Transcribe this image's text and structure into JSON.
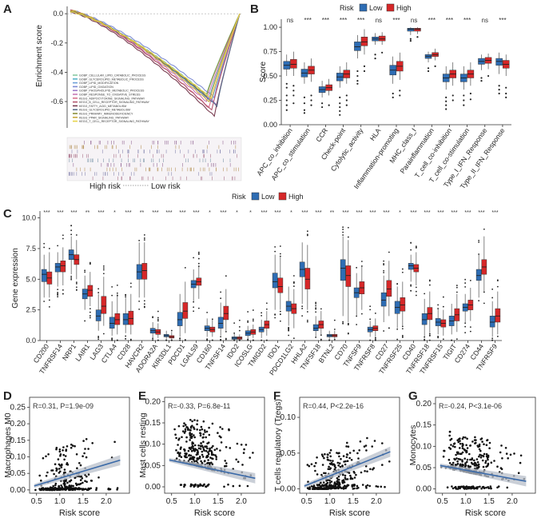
{
  "colors": {
    "low": "#2e6db4",
    "high": "#d62728",
    "axis": "#333333",
    "fit": "#3b6aa8",
    "band": "#b8bfc9",
    "point": "#111111"
  },
  "panel_letters": [
    "A",
    "B",
    "C",
    "D",
    "E",
    "F",
    "G"
  ],
  "chart_data": [
    {
      "id": "A",
      "type": "line",
      "ylabel": "Enrichment score",
      "yticks": [
        0.0,
        -0.2,
        -0.4,
        -0.6
      ],
      "ylim": [
        -0.78,
        0.05
      ],
      "legend": [
        {
          "name": "GOBP_CELLULAR_LIPID_CATABOLIC_PROCESS",
          "color": "#88c9a1"
        },
        {
          "name": "GOBP_GLYCEROLIPID_METABOLIC_PROCESS",
          "color": "#5ab4c8"
        },
        {
          "name": "GOBP_LIPID_MODIFICATION",
          "color": "#6fa0d8"
        },
        {
          "name": "GOBP_LIPID_OXIDATION",
          "color": "#7d8bd4"
        },
        {
          "name": "GOBP_PHOSPHOLIPID_METABOLIC_PROCESS",
          "color": "#a07cc8"
        },
        {
          "name": "GOBP_RESPONSE_TO_OXIDATIVE_STRESS",
          "color": "#c679b4"
        },
        {
          "name": "KEGG_ADIPOCYTOKINE_SIGNALING_PATHWAY",
          "color": "#d8738e"
        },
        {
          "name": "KEGG_B_CELL_RECEPTOR_SIGNALING_PATHWAY",
          "color": "#b3566e"
        },
        {
          "name": "KEGG_FATTY_ACID_METABOLISM",
          "color": "#7a3e52"
        },
        {
          "name": "KEGG_GLYCEROLIPID_METABOLISM",
          "color": "#5c6e8a"
        },
        {
          "name": "KEGG_PRIMARY_IMMUNODEFICIENCY",
          "color": "#8b8f3a"
        },
        {
          "name": "KEGG_PPAR_SIGNALING_PATHWAY",
          "color": "#c8a83e"
        },
        {
          "name": "KEGG_T_CELL_RECEPTOR_SIGNALING_PATHWAY",
          "color": "#e8d44a"
        }
      ],
      "series_min": [
        -0.55,
        -0.58,
        -0.6,
        -0.57,
        -0.62,
        -0.6,
        -0.64,
        -0.66,
        -0.7,
        -0.63,
        -0.56,
        -0.6,
        -0.58
      ],
      "rank_label_left": "High risk",
      "rank_label_right": "Low risk"
    },
    {
      "id": "B",
      "type": "box",
      "legend_title": "Risk",
      "groups": [
        "Low",
        "High"
      ],
      "ylabel": "Score",
      "yticks": [
        0.0,
        0.25,
        0.5,
        0.75,
        1.0
      ],
      "ylim": [
        0.0,
        1.05
      ],
      "categories": [
        "APC_co_inhibition",
        "APC_co_stimulation",
        "CCR",
        "Check-point",
        "Cytolytic_activity",
        "HLA",
        "Inflammation-promoting",
        "MHC_class_I",
        "Parainflammation",
        "T_cell_co-inhibition",
        "T_cell_co-stimulation",
        "Type_I_IFN_Response",
        "Type_II_IFN_Response"
      ],
      "significance": [
        "ns",
        "***",
        "***",
        "***",
        "***",
        "ns",
        "***",
        "ns",
        "***",
        "***",
        "***",
        "ns",
        "***"
      ],
      "low": [
        [
          0.5,
          0.57,
          0.61,
          0.65,
          0.72
        ],
        [
          0.42,
          0.49,
          0.53,
          0.57,
          0.64
        ],
        [
          0.28,
          0.33,
          0.36,
          0.39,
          0.45
        ],
        [
          0.38,
          0.45,
          0.49,
          0.53,
          0.6
        ],
        [
          0.68,
          0.76,
          0.8,
          0.85,
          0.92
        ],
        [
          0.82,
          0.86,
          0.88,
          0.9,
          0.94
        ],
        [
          0.42,
          0.51,
          0.56,
          0.61,
          0.7
        ],
        [
          0.92,
          0.96,
          0.98,
          0.99,
          1.0
        ],
        [
          0.64,
          0.68,
          0.7,
          0.72,
          0.75
        ],
        [
          0.36,
          0.44,
          0.48,
          0.52,
          0.6
        ],
        [
          0.36,
          0.44,
          0.48,
          0.52,
          0.6
        ],
        [
          0.56,
          0.62,
          0.65,
          0.68,
          0.72
        ],
        [
          0.52,
          0.61,
          0.65,
          0.68,
          0.74
        ]
      ],
      "high": [
        [
          0.5,
          0.58,
          0.62,
          0.67,
          0.75
        ],
        [
          0.44,
          0.52,
          0.56,
          0.6,
          0.68
        ],
        [
          0.3,
          0.35,
          0.38,
          0.41,
          0.47
        ],
        [
          0.42,
          0.48,
          0.52,
          0.56,
          0.64
        ],
        [
          0.72,
          0.81,
          0.85,
          0.9,
          0.98
        ],
        [
          0.82,
          0.86,
          0.88,
          0.91,
          0.95
        ],
        [
          0.46,
          0.55,
          0.6,
          0.65,
          0.74
        ],
        [
          0.93,
          0.96,
          0.98,
          0.99,
          1.0
        ],
        [
          0.66,
          0.7,
          0.72,
          0.74,
          0.78
        ],
        [
          0.4,
          0.48,
          0.52,
          0.56,
          0.64
        ],
        [
          0.4,
          0.48,
          0.52,
          0.56,
          0.64
        ],
        [
          0.57,
          0.63,
          0.66,
          0.69,
          0.73
        ],
        [
          0.5,
          0.58,
          0.62,
          0.66,
          0.72
        ]
      ],
      "outliers_low": [
        [
          0.38,
          0.42,
          0.3,
          0.25,
          0.2,
          0.15
        ],
        [
          0.28,
          0.22,
          0.15,
          0.12
        ],
        [
          0.18,
          0.22
        ],
        [
          0.28,
          0.22,
          0.18,
          0.14,
          0.1
        ],
        [
          0.55,
          0.5,
          0.45,
          0.42
        ],
        [
          0.72,
          0.68
        ],
        [
          0.32,
          0.28
        ],
        [
          0.88,
          0.86
        ],
        [
          0.58,
          0.55
        ],
        [
          0.28,
          0.24,
          0.2,
          0.16
        ],
        [
          0.3,
          0.25,
          0.2
        ],
        [
          0.48,
          0.45
        ],
        [
          0.4,
          0.36,
          0.32
        ]
      ],
      "outliers_high": [
        [
          0.4,
          0.35,
          0.3,
          0.22
        ],
        [
          0.3,
          0.25,
          0.2
        ],
        [
          0.2
        ],
        [
          0.3,
          0.25,
          0.2
        ],
        [
          0.6,
          0.55
        ],
        [
          0.74
        ],
        [
          0.35,
          0.3
        ],
        [
          0.9
        ],
        [
          0.6
        ],
        [
          0.3,
          0.25
        ],
        [
          0.32,
          0.26
        ],
        [
          0.5
        ],
        [
          0.38,
          0.32,
          0.28
        ]
      ]
    },
    {
      "id": "C",
      "type": "box",
      "legend_title": "Risk",
      "groups": [
        "Low",
        "High"
      ],
      "ylabel": "Gene expression",
      "yticks": [
        0.0,
        2.5,
        5.0,
        7.5,
        10.0
      ],
      "ylim": [
        0.0,
        10.3
      ],
      "categories": [
        "CD200",
        "TNFRSF14",
        "NRP1",
        "LAIR1",
        "LAG3",
        "CTLA4",
        "CD28",
        "HAVCR2",
        "ADORA2A",
        "KIR3DL1",
        "PDCD1",
        "LGALS9",
        "CD160",
        "TNFSF14",
        "IDO2",
        "ICOSLG",
        "TMIGD2",
        "IDO1",
        "PDCD1LG2",
        "HHLA2",
        "TNFSF18",
        "BTNL2",
        "CD70",
        "TNFSF9",
        "TNFRSF8",
        "CD27",
        "TNFRSF25",
        "CD40",
        "TNFRSF18",
        "TNFRSF15",
        "TIGIT",
        "CD274",
        "CD44",
        "TNFRSF9"
      ],
      "significance": [
        "***",
        "***",
        "***",
        "**",
        "***",
        "*",
        "***",
        "**",
        "***",
        "***",
        "***",
        "***",
        "*",
        "***",
        "*",
        "*",
        "***",
        "***",
        "*",
        "***",
        "***",
        "**",
        "***",
        "***",
        "***",
        "***",
        "*",
        "***",
        "***",
        "***",
        "***",
        "***",
        "***",
        "***"
      ],
      "low": [
        [
          3.5,
          4.8,
          5.4,
          5.8,
          7.0
        ],
        [
          4.4,
          5.6,
          6.0,
          6.3,
          7.2
        ],
        [
          5.4,
          6.6,
          7.0,
          7.4,
          8.5
        ],
        [
          2.5,
          3.4,
          3.8,
          4.2,
          5.3
        ],
        [
          0.8,
          1.6,
          2.0,
          2.5,
          3.8
        ],
        [
          0.4,
          1.0,
          1.4,
          1.9,
          3.2
        ],
        [
          0.6,
          1.3,
          1.7,
          2.2,
          3.5
        ],
        [
          3.5,
          5.0,
          5.6,
          6.2,
          8.0
        ],
        [
          0.2,
          0.6,
          0.8,
          1.0,
          1.5
        ],
        [
          0.1,
          0.3,
          0.4,
          0.5,
          0.8
        ],
        [
          0.3,
          1.2,
          1.7,
          2.3,
          3.8
        ],
        [
          3.2,
          4.3,
          4.6,
          4.9,
          5.8
        ],
        [
          0.3,
          0.8,
          1.0,
          1.2,
          1.8
        ],
        [
          0.4,
          1.0,
          1.4,
          1.9,
          3.1
        ],
        [
          0.0,
          0.1,
          0.2,
          0.3,
          0.6
        ],
        [
          0.1,
          0.4,
          0.6,
          0.8,
          1.2
        ],
        [
          0.2,
          0.7,
          0.9,
          1.1,
          1.7
        ],
        [
          2.5,
          4.3,
          4.8,
          5.5,
          7.0
        ],
        [
          1.2,
          2.4,
          2.8,
          3.2,
          4.4
        ],
        [
          3.0,
          5.2,
          5.8,
          6.4,
          8.0
        ],
        [
          0.3,
          0.8,
          1.0,
          1.3,
          2.0
        ],
        [
          0.1,
          0.3,
          0.4,
          0.5,
          0.8
        ],
        [
          2.0,
          4.9,
          5.9,
          6.6,
          8.5
        ],
        [
          2.0,
          3.5,
          3.9,
          4.3,
          5.5
        ],
        [
          0.3,
          0.7,
          0.9,
          1.1,
          1.6
        ],
        [
          1.5,
          2.8,
          3.3,
          3.9,
          5.3
        ],
        [
          1.0,
          2.2,
          2.7,
          3.2,
          4.4
        ],
        [
          4.8,
          5.8,
          6.1,
          6.3,
          7.0
        ],
        [
          0.3,
          1.3,
          1.7,
          2.2,
          3.4
        ],
        [
          0.5,
          1.2,
          1.5,
          1.8,
          2.6
        ],
        [
          0.5,
          1.2,
          1.6,
          2.0,
          3.0
        ],
        [
          1.5,
          2.4,
          2.7,
          3.0,
          3.8
        ],
        [
          3.5,
          4.9,
          5.3,
          5.8,
          7.0
        ],
        [
          0.3,
          1.1,
          1.5,
          2.0,
          3.2
        ]
      ],
      "high": [
        [
          3.5,
          4.6,
          5.1,
          5.6,
          7.2
        ],
        [
          4.5,
          5.6,
          6.1,
          6.5,
          7.6
        ],
        [
          5.0,
          6.2,
          6.6,
          7.0,
          8.2
        ],
        [
          2.8,
          3.6,
          4.1,
          4.5,
          5.6
        ],
        [
          1.2,
          2.2,
          2.8,
          3.6,
          5.2
        ],
        [
          0.5,
          1.3,
          1.7,
          2.2,
          3.6
        ],
        [
          0.5,
          1.3,
          1.8,
          2.4,
          3.8
        ],
        [
          3.5,
          5.0,
          5.7,
          6.3,
          8.0
        ],
        [
          0.2,
          0.5,
          0.7,
          0.9,
          1.4
        ],
        [
          0.1,
          0.2,
          0.3,
          0.4,
          0.7
        ],
        [
          0.6,
          1.8,
          2.4,
          3.1,
          4.8
        ],
        [
          3.4,
          4.5,
          4.8,
          5.1,
          6.0
        ],
        [
          0.3,
          0.7,
          0.9,
          1.1,
          1.7
        ],
        [
          0.8,
          1.7,
          2.2,
          2.8,
          4.2
        ],
        [
          0.0,
          0.1,
          0.2,
          0.3,
          0.5
        ],
        [
          0.2,
          0.5,
          0.7,
          0.9,
          1.3
        ],
        [
          0.4,
          1.0,
          1.3,
          1.6,
          2.4
        ],
        [
          2.5,
          3.9,
          4.4,
          5.1,
          6.8
        ],
        [
          1.0,
          2.2,
          2.6,
          3.0,
          4.2
        ],
        [
          2.5,
          4.2,
          5.0,
          5.9,
          7.8
        ],
        [
          0.5,
          1.0,
          1.3,
          1.6,
          2.4
        ],
        [
          0.1,
          0.3,
          0.4,
          0.5,
          0.8
        ],
        [
          1.5,
          4.4,
          5.3,
          6.1,
          8.2
        ],
        [
          2.5,
          3.8,
          4.3,
          4.8,
          6.0
        ],
        [
          0.3,
          0.8,
          1.0,
          1.2,
          1.8
        ],
        [
          2.0,
          3.6,
          4.2,
          4.9,
          6.5
        ],
        [
          1.2,
          2.4,
          2.9,
          3.5,
          4.8
        ],
        [
          4.5,
          5.6,
          5.9,
          6.2,
          7.2
        ],
        [
          0.6,
          1.7,
          2.2,
          2.7,
          4.0
        ],
        [
          0.4,
          1.1,
          1.4,
          1.7,
          2.5
        ],
        [
          0.7,
          1.6,
          2.1,
          2.6,
          3.8
        ],
        [
          1.6,
          2.5,
          2.9,
          3.3,
          4.3
        ],
        [
          4.0,
          5.4,
          6.0,
          6.6,
          8.5
        ],
        [
          0.5,
          1.5,
          2.0,
          2.6,
          4.0
        ]
      ]
    },
    {
      "id": "D",
      "type": "scatter",
      "xlabel": "Risk score",
      "ylabel": "Macrophages M0",
      "annotation": "R=0.31, P=1.9e-09",
      "xlim": [
        0.35,
        2.5
      ],
      "ylim": [
        -0.01,
        0.28
      ],
      "xticks": [
        0.5,
        1.0,
        1.5,
        2.0
      ],
      "yticks": [
        0.0,
        0.05,
        0.1,
        0.15,
        0.2,
        0.25
      ],
      "fit": {
        "x": [
          0.45,
          2.3
        ],
        "y": [
          0.012,
          0.09
        ]
      },
      "n_points": 300,
      "seed": 11,
      "dist": {
        "mode": "zero-heavy",
        "base": 0.03,
        "slope": 0.04,
        "spread": 0.06,
        "zero_frac": 0.45
      }
    },
    {
      "id": "E",
      "type": "scatter",
      "xlabel": "Risk score",
      "ylabel": "Mast cells resting",
      "annotation": "R=-0.33, P=6.8e-11",
      "xlim": [
        0.35,
        2.5
      ],
      "ylim": [
        -0.015,
        0.21
      ],
      "xticks": [
        0.5,
        1.0,
        1.5,
        2.0
      ],
      "yticks": [
        0.0,
        0.05,
        0.1,
        0.15,
        0.2
      ],
      "fit": {
        "x": [
          0.45,
          2.3
        ],
        "y": [
          0.063,
          0.02
        ]
      },
      "n_points": 330,
      "seed": 23,
      "dist": {
        "mode": "spread",
        "base": 0.075,
        "slope": -0.028,
        "spread": 0.05,
        "zero_frac": 0.1
      }
    },
    {
      "id": "F",
      "type": "scatter",
      "xlabel": "Risk score",
      "ylabel": "T cells regulatory (Tregs)",
      "annotation": "R=0.44, P<2.2e-16",
      "xlim": [
        0.35,
        2.5
      ],
      "ylim": [
        -0.006,
        0.128
      ],
      "xticks": [
        0.5,
        1.0,
        1.5,
        2.0
      ],
      "yticks": [
        0.0,
        0.05,
        0.1
      ],
      "fit": {
        "x": [
          0.45,
          2.3
        ],
        "y": [
          0.004,
          0.052
        ]
      },
      "n_points": 320,
      "seed": 37,
      "dist": {
        "mode": "zero-heavy",
        "base": 0.012,
        "slope": 0.03,
        "spread": 0.025,
        "zero_frac": 0.35
      }
    },
    {
      "id": "G",
      "type": "scatter",
      "xlabel": "Risk score",
      "ylabel": "Monocytes",
      "annotation": "R=-0.24, P<3.1e-06",
      "xlim": [
        0.35,
        2.5
      ],
      "ylim": [
        -0.01,
        0.215
      ],
      "xticks": [
        0.5,
        1.0,
        1.5,
        2.0
      ],
      "yticks": [
        0.0,
        0.05,
        0.1,
        0.15,
        0.2
      ],
      "fit": {
        "x": [
          0.45,
          2.3
        ],
        "y": [
          0.055,
          0.018
        ]
      },
      "n_points": 320,
      "seed": 53,
      "dist": {
        "mode": "spread",
        "base": 0.06,
        "slope": -0.022,
        "spread": 0.04,
        "zero_frac": 0.2
      }
    }
  ]
}
